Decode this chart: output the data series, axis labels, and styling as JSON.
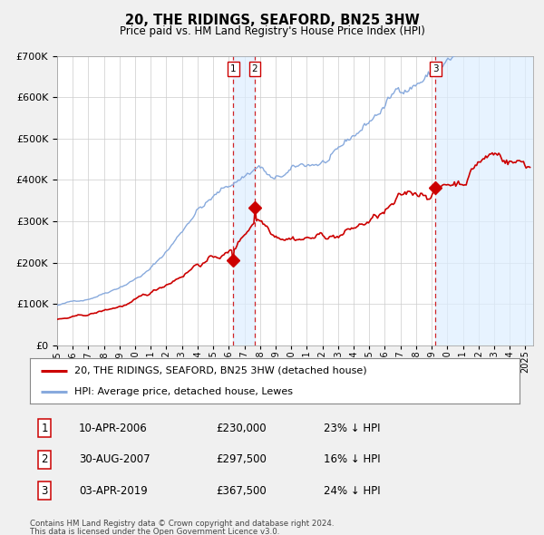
{
  "title": "20, THE RIDINGS, SEAFORD, BN25 3HW",
  "subtitle": "Price paid vs. HM Land Registry's House Price Index (HPI)",
  "legend_property": "20, THE RIDINGS, SEAFORD, BN25 3HW (detached house)",
  "legend_hpi": "HPI: Average price, detached house, Lewes",
  "transactions": [
    {
      "num": 1,
      "date": "10-APR-2006",
      "price": 230000,
      "pct": "23%",
      "dir": "↓",
      "year": 2006.292
    },
    {
      "num": 2,
      "date": "30-AUG-2007",
      "price": 297500,
      "pct": "16%",
      "dir": "↓",
      "year": 2007.663
    },
    {
      "num": 3,
      "date": "03-APR-2019",
      "price": 367500,
      "pct": "24%",
      "dir": "↓",
      "year": 2019.253
    }
  ],
  "footnote1": "Contains HM Land Registry data © Crown copyright and database right 2024.",
  "footnote2": "This data is licensed under the Open Government Licence v3.0.",
  "property_color": "#cc0000",
  "hpi_color": "#88aadd",
  "vline_color": "#cc0000",
  "shade_color": "#ddeeff",
  "background_color": "#f0f0f0",
  "plot_bg": "#ffffff",
  "ylim": [
    0,
    700000
  ],
  "xlim_start": 1995.0,
  "xlim_end": 2025.5
}
